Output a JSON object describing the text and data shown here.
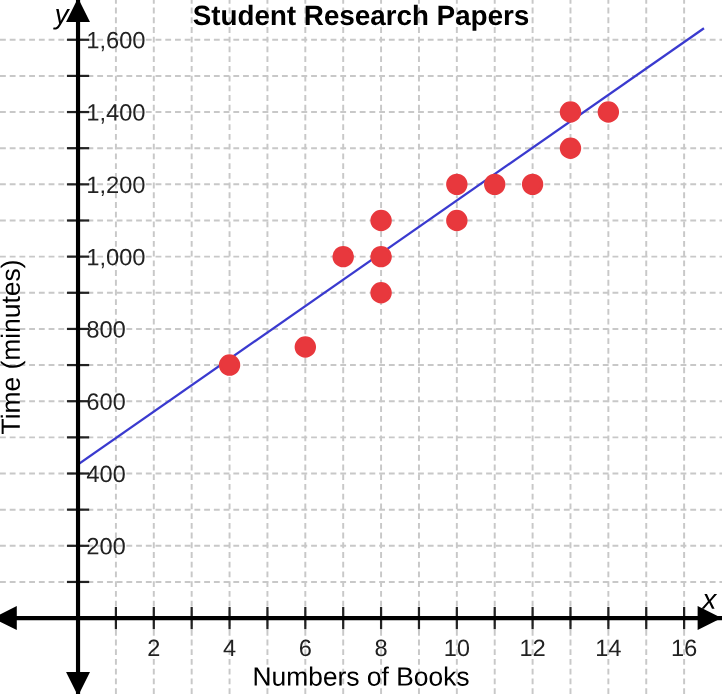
{
  "chart_data": {
    "type": "scatter",
    "title": "Student Research Papers",
    "xlabel": "Numbers of Books",
    "ylabel": "Time (minutes)",
    "annotations": [
      "y",
      "x"
    ],
    "xlim": [
      -2.06,
      17
    ],
    "ylim": [
      -210,
      1710
    ],
    "xticks": [
      {
        "value": 1,
        "label": null
      },
      2,
      {
        "value": 3,
        "label": null
      },
      4,
      {
        "value": 5,
        "label": null
      },
      6,
      {
        "value": 7,
        "label": null
      },
      8,
      {
        "value": 9,
        "label": null
      },
      10,
      {
        "value": 11,
        "label": null
      },
      12,
      {
        "value": 13,
        "label": null
      },
      14,
      {
        "value": 15,
        "label": null
      },
      16
    ],
    "yticks": [
      {
        "value": 100,
        "label": null
      },
      200,
      {
        "value": 300,
        "label": null
      },
      400,
      {
        "value": 500,
        "label": null
      },
      600,
      {
        "value": 700,
        "label": null
      },
      800,
      {
        "value": 900,
        "label": null
      },
      {
        "value": 1000,
        "label": "1,000"
      },
      {
        "value": 1100,
        "label": null
      },
      {
        "value": 1200,
        "label": "1,200"
      },
      {
        "value": 1300,
        "label": null
      },
      {
        "value": 1400,
        "label": "1,400"
      },
      {
        "value": 1500,
        "label": null
      },
      {
        "value": 1600,
        "label": "1,600"
      }
    ],
    "grid": true,
    "series": [
      {
        "marker": "circle",
        "color": "#e8383d",
        "x": [
          4,
          6,
          7,
          8,
          8,
          8,
          10,
          10,
          11,
          12,
          13,
          13,
          14
        ],
        "values": [
          700,
          750,
          1000,
          1100,
          1000,
          900,
          1200,
          1100,
          1200,
          1200,
          1400,
          1300,
          1400
        ]
      },
      {
        "type": "line",
        "color": "#3a3acf",
        "line_style": "solid",
        "x": [
          0,
          16.5
        ],
        "values": [
          425,
          1630
        ]
      }
    ]
  }
}
